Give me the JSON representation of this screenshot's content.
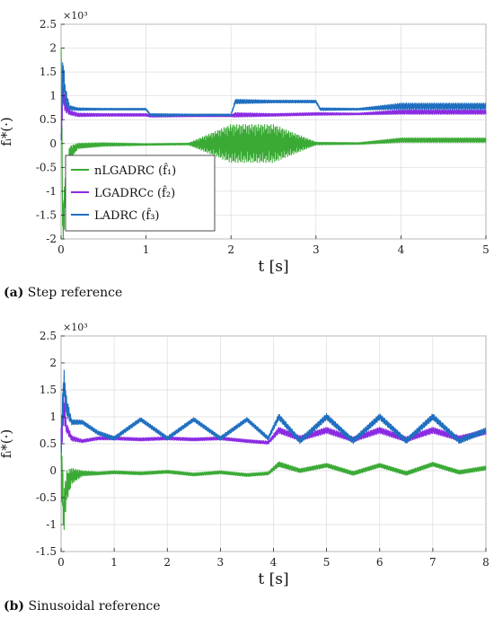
{
  "chart_data": [
    {
      "type": "line",
      "caption_tag": "(a)",
      "caption_text": " Step reference",
      "xlabel": "t [s]",
      "ylabel": "f̂ᵢ*(·)",
      "multiplier": "×10³",
      "xlim": [
        0,
        5
      ],
      "ylim": [
        -2,
        2.5
      ],
      "xticks": [
        0,
        1,
        2,
        3,
        4,
        5
      ],
      "yticks": [
        -2,
        -1.5,
        -1,
        -0.5,
        0,
        0.5,
        1,
        1.5,
        2,
        2.5
      ],
      "grid": true,
      "legend_position": "lower-left",
      "series": [
        {
          "name": "nLGADRC (f̂₁)",
          "color": "#3aaa35",
          "x": [
            0,
            0.02,
            0.05,
            0.1,
            0.2,
            0.5,
            1.0,
            1.5,
            2.0,
            2.5,
            3.0,
            3.5,
            4.0,
            4.5,
            5.0
          ],
          "y": [
            2.0,
            -1.8,
            -1.0,
            -0.2,
            -0.05,
            -0.02,
            -0.02,
            -0.01,
            0.0,
            0.0,
            0.0,
            0.0,
            0.07,
            0.07,
            0.07
          ],
          "oscillation_amplitude": [
            0.4,
            0.6,
            0.3,
            0.15,
            0.06,
            0.04,
            0.02,
            0.02,
            0.4,
            0.4,
            0.03,
            0.02,
            0.05,
            0.05,
            0.05
          ]
        },
        {
          "name": "LGADRCc (f̂₂)",
          "color": "#8a2be2",
          "x": [
            0,
            0.02,
            0.05,
            0.1,
            0.2,
            0.5,
            1.0,
            1.05,
            1.5,
            2.0,
            2.05,
            2.5,
            3.0,
            3.05,
            3.5,
            4.0,
            4.5,
            5.0
          ],
          "y": [
            0.0,
            1.1,
            0.8,
            0.65,
            0.6,
            0.6,
            0.6,
            0.58,
            0.58,
            0.58,
            0.6,
            0.6,
            0.62,
            0.62,
            0.62,
            0.66,
            0.66,
            0.66
          ],
          "oscillation_amplitude": [
            0.2,
            0.3,
            0.15,
            0.05,
            0.04,
            0.03,
            0.03,
            0.03,
            0.02,
            0.02,
            0.05,
            0.03,
            0.03,
            0.03,
            0.02,
            0.05,
            0.05,
            0.05
          ]
        },
        {
          "name": "LADRC (f̂₃)",
          "color": "#1f6fc0",
          "x": [
            0,
            0.02,
            0.05,
            0.1,
            0.2,
            0.5,
            1.0,
            1.05,
            1.5,
            2.0,
            2.05,
            2.5,
            3.0,
            3.05,
            3.5,
            4.0,
            4.5,
            5.0
          ],
          "y": [
            0.0,
            1.6,
            1.0,
            0.75,
            0.72,
            0.72,
            0.72,
            0.6,
            0.6,
            0.6,
            0.88,
            0.88,
            0.88,
            0.72,
            0.72,
            0.78,
            0.78,
            0.78
          ],
          "oscillation_amplitude": [
            0.2,
            0.3,
            0.2,
            0.05,
            0.03,
            0.02,
            0.02,
            0.03,
            0.02,
            0.02,
            0.05,
            0.03,
            0.03,
            0.03,
            0.02,
            0.07,
            0.07,
            0.07
          ]
        }
      ]
    },
    {
      "type": "line",
      "caption_tag": "(b)",
      "caption_text": " Sinusoidal reference",
      "xlabel": "t [s]",
      "ylabel": "f̂ᵢ*(·)",
      "multiplier": "×10³",
      "xlim": [
        0,
        8
      ],
      "ylim": [
        -1.5,
        2.5
      ],
      "xticks": [
        0,
        1,
        2,
        3,
        4,
        5,
        6,
        7,
        8
      ],
      "yticks": [
        -1.5,
        -1,
        -0.5,
        0,
        0.5,
        1,
        1.5,
        2,
        2.5
      ],
      "grid": true,
      "legend_position": "none",
      "series": [
        {
          "name": "nLGADRC (f̂₁)",
          "color": "#3aaa35",
          "x": [
            0,
            0.05,
            0.1,
            0.2,
            0.4,
            0.7,
            1.0,
            1.5,
            2.0,
            2.5,
            3.0,
            3.5,
            3.9,
            4.1,
            4.5,
            5.0,
            5.5,
            6.0,
            6.5,
            7.0,
            7.5,
            8.0
          ],
          "y": [
            0.2,
            -0.8,
            -0.3,
            -0.1,
            -0.05,
            -0.05,
            -0.03,
            -0.05,
            -0.02,
            -0.07,
            -0.03,
            -0.08,
            -0.05,
            0.12,
            0.0,
            0.1,
            -0.05,
            0.1,
            -0.05,
            0.12,
            -0.03,
            0.05
          ],
          "oscillation_amplitude": [
            0.6,
            0.4,
            0.3,
            0.15,
            0.05,
            0.03,
            0.03,
            0.03,
            0.03,
            0.03,
            0.03,
            0.03,
            0.03,
            0.05,
            0.04,
            0.04,
            0.04,
            0.04,
            0.04,
            0.04,
            0.04,
            0.04
          ]
        },
        {
          "name": "LGADRCc (f̂₂)",
          "color": "#8a2be2",
          "x": [
            0,
            0.05,
            0.1,
            0.2,
            0.4,
            0.7,
            1.0,
            1.5,
            2.0,
            2.5,
            3.0,
            3.5,
            3.9,
            4.1,
            4.5,
            5.0,
            5.5,
            6.0,
            6.5,
            7.0,
            7.5,
            8.0
          ],
          "y": [
            0.5,
            1.2,
            0.8,
            0.6,
            0.55,
            0.6,
            0.6,
            0.58,
            0.6,
            0.58,
            0.6,
            0.55,
            0.52,
            0.75,
            0.6,
            0.75,
            0.58,
            0.75,
            0.58,
            0.75,
            0.6,
            0.72
          ],
          "oscillation_amplitude": [
            0.3,
            0.3,
            0.1,
            0.05,
            0.03,
            0.03,
            0.03,
            0.03,
            0.03,
            0.03,
            0.03,
            0.03,
            0.03,
            0.06,
            0.05,
            0.06,
            0.05,
            0.06,
            0.05,
            0.06,
            0.05,
            0.05
          ]
        },
        {
          "name": "LADRC (f̂₃)",
          "color": "#1f6fc0",
          "x": [
            0,
            0.05,
            0.1,
            0.2,
            0.4,
            0.7,
            1.0,
            1.5,
            2.0,
            2.5,
            3.0,
            3.5,
            3.9,
            4.1,
            4.5,
            5.0,
            5.5,
            6.0,
            6.5,
            7.0,
            7.5,
            8.0
          ],
          "y": [
            0.5,
            1.65,
            1.2,
            0.9,
            0.9,
            0.7,
            0.6,
            0.95,
            0.6,
            0.95,
            0.6,
            0.95,
            0.6,
            1.0,
            0.55,
            1.0,
            0.55,
            1.0,
            0.55,
            1.0,
            0.55,
            0.75
          ],
          "oscillation_amplitude": [
            0.3,
            0.3,
            0.2,
            0.05,
            0.04,
            0.04,
            0.04,
            0.04,
            0.04,
            0.04,
            0.04,
            0.04,
            0.04,
            0.06,
            0.05,
            0.06,
            0.05,
            0.06,
            0.05,
            0.06,
            0.05,
            0.05
          ]
        }
      ]
    }
  ]
}
